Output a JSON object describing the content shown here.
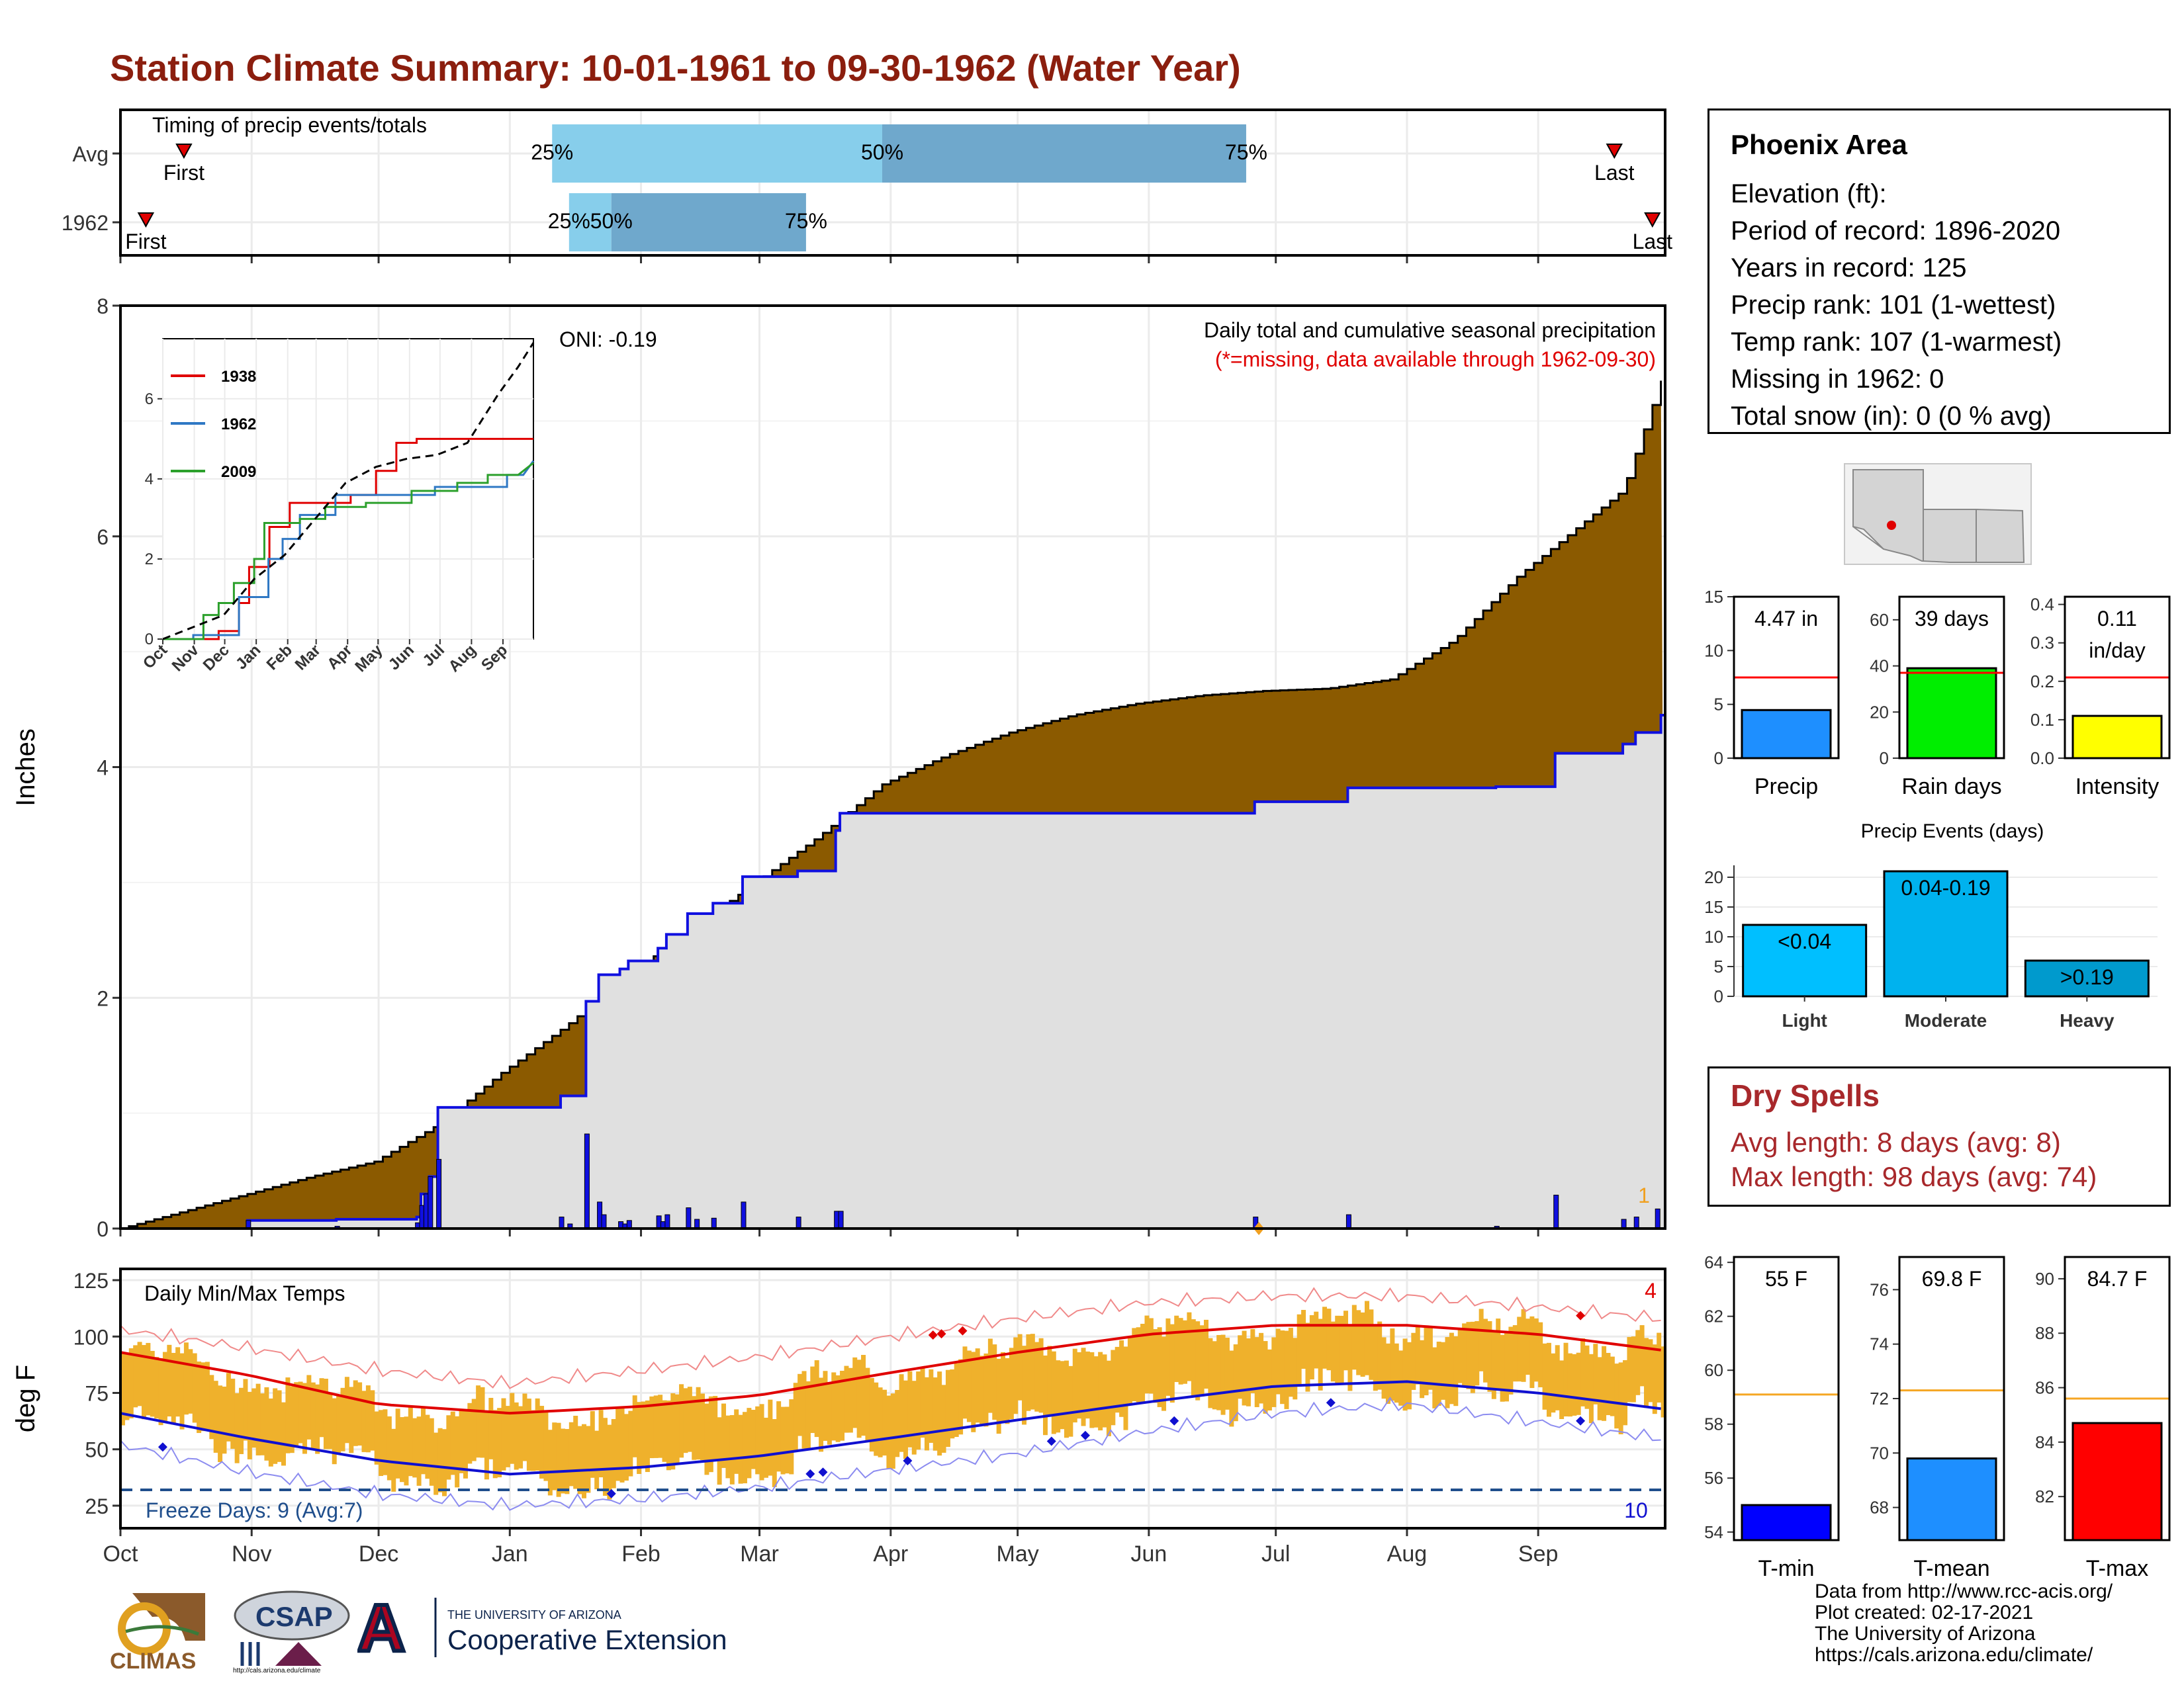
{
  "title": "Station Climate Summary: 10-01-1961 to 09-30-1962 (Water Year)",
  "timing": {
    "label": "Timing of precip events/totals",
    "rows": [
      {
        "name": "Avg",
        "first_day": 15,
        "q25": 102,
        "q50": 180,
        "q75": 266,
        "last_day": 353,
        "first_label": "First",
        "last_label": "Last",
        "q25_label": "25%",
        "q50_label": "50%",
        "q75_label": "75%"
      },
      {
        "name": "1962",
        "first_day": 6,
        "q25": 106,
        "q50": 116,
        "q75": 162,
        "last_day": 362,
        "first_label": "First",
        "last_label": "Last",
        "q25_label": "25%",
        "q50_label": "50%",
        "q75_label": "75%"
      }
    ],
    "colors": {
      "q1": "#87ceeb",
      "q2": "#6fa8cc"
    }
  },
  "precip": {
    "ylabel": "Inches",
    "ylim": [
      0,
      8
    ],
    "yticks": [
      0,
      2,
      4,
      6,
      8
    ],
    "note1": "Daily total and cumulative seasonal precipitation",
    "note2": "(*=missing, data available through 1962-09-30)",
    "oni": "ONI: -0.19",
    "corner_count": "1",
    "avg_cumulative": [
      [
        0,
        0
      ],
      [
        10,
        0.1
      ],
      [
        20,
        0.2
      ],
      [
        30,
        0.3
      ],
      [
        45,
        0.45
      ],
      [
        60,
        0.58
      ],
      [
        75,
        0.9
      ],
      [
        90,
        1.35
      ],
      [
        105,
        1.75
      ],
      [
        120,
        2.2
      ],
      [
        135,
        2.6
      ],
      [
        150,
        3.0
      ],
      [
        165,
        3.4
      ],
      [
        180,
        3.85
      ],
      [
        195,
        4.1
      ],
      [
        210,
        4.3
      ],
      [
        225,
        4.45
      ],
      [
        240,
        4.55
      ],
      [
        255,
        4.62
      ],
      [
        270,
        4.66
      ],
      [
        285,
        4.68
      ],
      [
        300,
        4.76
      ],
      [
        315,
        5.1
      ],
      [
        330,
        5.65
      ],
      [
        345,
        6.1
      ],
      [
        355,
        6.4
      ],
      [
        364,
        7.35
      ]
    ],
    "obs_cumulative": [
      [
        0,
        0
      ],
      [
        30,
        0
      ],
      [
        30,
        0.07
      ],
      [
        51,
        0.07
      ],
      [
        51,
        0.08
      ],
      [
        70,
        0.08
      ],
      [
        70,
        0.1
      ],
      [
        71,
        0.1
      ],
      [
        71,
        0.3
      ],
      [
        73,
        0.3
      ],
      [
        73,
        0.45
      ],
      [
        75,
        0.45
      ],
      [
        75,
        1.05
      ],
      [
        104,
        1.05
      ],
      [
        104,
        1.15
      ],
      [
        110,
        1.15
      ],
      [
        110,
        1.97
      ],
      [
        113,
        1.97
      ],
      [
        113,
        2.2
      ],
      [
        118,
        2.2
      ],
      [
        118,
        2.25
      ],
      [
        120,
        2.25
      ],
      [
        120,
        2.32
      ],
      [
        127,
        2.32
      ],
      [
        127,
        2.43
      ],
      [
        129,
        2.43
      ],
      [
        129,
        2.55
      ],
      [
        134,
        2.55
      ],
      [
        134,
        2.73
      ],
      [
        140,
        2.73
      ],
      [
        140,
        2.82
      ],
      [
        147,
        2.82
      ],
      [
        147,
        3.05
      ],
      [
        160,
        3.05
      ],
      [
        160,
        3.1
      ],
      [
        169,
        3.1
      ],
      [
        169,
        3.45
      ],
      [
        170,
        3.45
      ],
      [
        170,
        3.6
      ],
      [
        268,
        3.6
      ],
      [
        268,
        3.7
      ],
      [
        290,
        3.7
      ],
      [
        290,
        3.82
      ],
      [
        325,
        3.82
      ],
      [
        325,
        3.83
      ],
      [
        339,
        3.83
      ],
      [
        339,
        4.12
      ],
      [
        355,
        4.12
      ],
      [
        355,
        4.2
      ],
      [
        358,
        4.2
      ],
      [
        358,
        4.3
      ],
      [
        364,
        4.3
      ],
      [
        364,
        4.45
      ],
      [
        365,
        4.45
      ]
    ],
    "daily": [
      [
        30,
        0.07
      ],
      [
        51,
        0.02
      ],
      [
        70,
        0.05
      ],
      [
        71,
        0.2
      ],
      [
        72,
        0.3
      ],
      [
        73,
        0.45
      ],
      [
        75,
        0.6
      ],
      [
        104,
        0.1
      ],
      [
        106,
        0.04
      ],
      [
        110,
        0.82
      ],
      [
        113,
        0.23
      ],
      [
        114,
        0.12
      ],
      [
        118,
        0.06
      ],
      [
        119,
        0.04
      ],
      [
        120,
        0.07
      ],
      [
        127,
        0.11
      ],
      [
        128,
        0.06
      ],
      [
        129,
        0.12
      ],
      [
        134,
        0.18
      ],
      [
        136,
        0.08
      ],
      [
        140,
        0.09
      ],
      [
        147,
        0.23
      ],
      [
        160,
        0.1
      ],
      [
        169,
        0.15
      ],
      [
        170,
        0.15
      ],
      [
        268,
        0.1
      ],
      [
        290,
        0.12
      ],
      [
        325,
        0.02
      ],
      [
        339,
        0.29
      ],
      [
        355,
        0.08
      ],
      [
        358,
        0.1
      ],
      [
        363,
        0.17
      ]
    ],
    "missing_marker_day": 269,
    "colors": {
      "avg_fill": "#8b5a00",
      "obs_fill": "#e0e0e0",
      "obs_line": "#1010e0",
      "bars": "#1010e0"
    }
  },
  "inset": {
    "xlabels": [
      "Oct",
      "Nov",
      "Dec",
      "Jan",
      "Feb",
      "Mar",
      "Apr",
      "May",
      "Jun",
      "Jul",
      "Aug",
      "Sep"
    ],
    "yticks": [
      0,
      2,
      4,
      6
    ],
    "ylim": [
      0,
      7.5
    ],
    "series": [
      {
        "name": "1938",
        "color": "#e00000",
        "points": [
          [
            0,
            0
          ],
          [
            55,
            0
          ],
          [
            55,
            0.2
          ],
          [
            75,
            0.2
          ],
          [
            75,
            0.9
          ],
          [
            85,
            0.9
          ],
          [
            85,
            1.8
          ],
          [
            105,
            1.8
          ],
          [
            105,
            2.8
          ],
          [
            125,
            2.8
          ],
          [
            125,
            3.4
          ],
          [
            185,
            3.4
          ],
          [
            185,
            3.6
          ],
          [
            210,
            3.6
          ],
          [
            210,
            4.2
          ],
          [
            230,
            4.2
          ],
          [
            230,
            4.9
          ],
          [
            250,
            4.9
          ],
          [
            250,
            5.0
          ],
          [
            365,
            5.0
          ]
        ]
      },
      {
        "name": "1962",
        "color": "#2f78c4",
        "points": [
          [
            0,
            0
          ],
          [
            30,
            0
          ],
          [
            30,
            0.1
          ],
          [
            75,
            0.1
          ],
          [
            75,
            1.05
          ],
          [
            104,
            1.05
          ],
          [
            104,
            2.0
          ],
          [
            118,
            2.0
          ],
          [
            118,
            2.5
          ],
          [
            135,
            2.5
          ],
          [
            135,
            3.1
          ],
          [
            170,
            3.1
          ],
          [
            170,
            3.6
          ],
          [
            268,
            3.6
          ],
          [
            268,
            3.8
          ],
          [
            339,
            3.8
          ],
          [
            339,
            4.1
          ],
          [
            355,
            4.1
          ],
          [
            365,
            4.45
          ]
        ]
      },
      {
        "name": "2009",
        "color": "#2ca02c",
        "points": [
          [
            0,
            0
          ],
          [
            40,
            0
          ],
          [
            40,
            0.6
          ],
          [
            55,
            0.6
          ],
          [
            55,
            0.9
          ],
          [
            70,
            0.9
          ],
          [
            70,
            1.4
          ],
          [
            90,
            1.4
          ],
          [
            90,
            2.0
          ],
          [
            100,
            2.0
          ],
          [
            100,
            2.9
          ],
          [
            135,
            2.9
          ],
          [
            135,
            3.0
          ],
          [
            160,
            3.0
          ],
          [
            160,
            3.3
          ],
          [
            200,
            3.3
          ],
          [
            200,
            3.4
          ],
          [
            245,
            3.4
          ],
          [
            245,
            3.7
          ],
          [
            290,
            3.7
          ],
          [
            290,
            3.9
          ],
          [
            320,
            3.9
          ],
          [
            320,
            4.1
          ],
          [
            350,
            4.1
          ],
          [
            365,
            4.4
          ]
        ]
      }
    ],
    "avg": [
      [
        0,
        0
      ],
      [
        30,
        0.3
      ],
      [
        60,
        0.6
      ],
      [
        90,
        1.5
      ],
      [
        120,
        2.1
      ],
      [
        150,
        3.0
      ],
      [
        180,
        3.9
      ],
      [
        210,
        4.3
      ],
      [
        240,
        4.5
      ],
      [
        270,
        4.6
      ],
      [
        300,
        4.9
      ],
      [
        330,
        6.1
      ],
      [
        350,
        6.8
      ],
      [
        365,
        7.4
      ]
    ]
  },
  "temps": {
    "ylabel": "deg F",
    "title": "Daily Min/Max Temps",
    "ylim": [
      15,
      130
    ],
    "yticks": [
      25,
      50,
      75,
      100,
      125
    ],
    "freeze_label": "Freeze Days: 9 (Avg:7)",
    "freeze_line": 32,
    "count_top": "4",
    "count_bottom": "10",
    "normal_max": [
      [
        0,
        93
      ],
      [
        30,
        83
      ],
      [
        61,
        70
      ],
      [
        92,
        66
      ],
      [
        123,
        69
      ],
      [
        151,
        74
      ],
      [
        182,
        84
      ],
      [
        212,
        93
      ],
      [
        243,
        101
      ],
      [
        273,
        105
      ],
      [
        304,
        105
      ],
      [
        335,
        101
      ],
      [
        364,
        94
      ]
    ],
    "normal_min": [
      [
        0,
        66
      ],
      [
        30,
        55
      ],
      [
        61,
        45
      ],
      [
        92,
        39
      ],
      [
        123,
        42
      ],
      [
        151,
        47
      ],
      [
        182,
        55
      ],
      [
        212,
        63
      ],
      [
        243,
        71
      ],
      [
        273,
        78
      ],
      [
        304,
        80
      ],
      [
        335,
        75
      ],
      [
        364,
        68
      ]
    ],
    "record_max": [
      [
        0,
        103
      ],
      [
        30,
        95
      ],
      [
        61,
        85
      ],
      [
        92,
        79
      ],
      [
        123,
        85
      ],
      [
        151,
        91
      ],
      [
        182,
        100
      ],
      [
        212,
        108
      ],
      [
        243,
        115
      ],
      [
        273,
        118
      ],
      [
        304,
        118
      ],
      [
        335,
        113
      ],
      [
        364,
        108
      ]
    ],
    "record_min": [
      [
        0,
        52
      ],
      [
        30,
        40
      ],
      [
        61,
        30
      ],
      [
        92,
        25
      ],
      [
        123,
        28
      ],
      [
        151,
        33
      ],
      [
        182,
        41
      ],
      [
        212,
        48
      ],
      [
        243,
        58
      ],
      [
        273,
        66
      ],
      [
        304,
        70
      ],
      [
        335,
        62
      ],
      [
        364,
        55
      ]
    ],
    "record_hi_days": [
      192,
      194,
      199,
      345
    ],
    "record_lo_days": [
      10,
      116,
      166,
      163,
      186,
      220,
      228,
      249,
      286,
      345
    ],
    "colors": {
      "range": "#efb12c",
      "max": "#e00000",
      "min": "#1010d0",
      "record_max": "#f08a8a",
      "record_min": "#8c8cf0",
      "freeze": "#1f4e8c"
    }
  },
  "month_labels": [
    "Oct",
    "Nov",
    "Dec",
    "Jan",
    "Feb",
    "Mar",
    "Apr",
    "May",
    "Jun",
    "Jul",
    "Aug",
    "Sep"
  ],
  "month_starts": [
    0,
    31,
    61,
    92,
    123,
    151,
    182,
    212,
    243,
    273,
    304,
    335
  ],
  "station": {
    "name": "Phoenix Area",
    "lines": [
      "Elevation (ft):",
      "Period of record: 1896-2020",
      "Years in record: 125",
      "Precip rank: 101 (1-wettest)",
      "Temp rank: 107 (1-warmest)",
      "Missing in 1962: 0",
      "Total snow (in): 0 (0 % avg)"
    ]
  },
  "precip_bars": [
    {
      "label": "Precip",
      "value": 4.47,
      "avg": 7.5,
      "ymax": 15,
      "yticks": [
        0,
        5,
        10,
        15
      ],
      "text": "4.47 in",
      "color": "#1e8fff"
    },
    {
      "label": "Rain days",
      "value": 39,
      "avg": 37,
      "ymax": 70,
      "yticks": [
        0,
        20,
        40,
        60
      ],
      "text": "39 days",
      "color": "#00ee00"
    },
    {
      "label": "Intensity",
      "value": 0.11,
      "avg": 0.21,
      "ymax": 0.42,
      "yticks": [
        0.0,
        0.1,
        0.2,
        0.3,
        0.4
      ],
      "text": "0.11",
      "text2": "in/day",
      "color": "#ffff00"
    }
  ],
  "events": {
    "title": "Precip Events (days)",
    "categories": [
      "Light",
      "Moderate",
      "Heavy"
    ],
    "values": [
      12,
      21,
      6
    ],
    "labels": [
      "<0.04",
      "0.04-0.19",
      ">0.19"
    ],
    "yticks": [
      0,
      5,
      10,
      15,
      20
    ],
    "ymax": 22,
    "colors": [
      "#00bfff",
      "#00b2ee",
      "#009acd"
    ]
  },
  "dry": {
    "title": "Dry Spells",
    "line1": "Avg length: 8 days (avg: 8)",
    "line2": "Max length: 98 days (avg: 74)"
  },
  "temp_bars": [
    {
      "label": "T-min",
      "value": 55,
      "avg": 59.1,
      "ymin": 53.7,
      "ymax": 64.2,
      "yticks": [
        54,
        56,
        58,
        60,
        62,
        64
      ],
      "text": "55 F",
      "color": "#0000ff"
    },
    {
      "label": "T-mean",
      "value": 69.8,
      "avg": 72.3,
      "ymin": 66.8,
      "ymax": 77.2,
      "yticks": [
        68,
        70,
        72,
        74,
        76
      ],
      "text": "69.8 F",
      "color": "#1e8fff"
    },
    {
      "label": "T-max",
      "value": 84.7,
      "avg": 85.6,
      "ymin": 80.4,
      "ymax": 90.8,
      "yticks": [
        82,
        84,
        86,
        88,
        90
      ],
      "text": "84.7 F",
      "color": "#ff0000"
    }
  ],
  "credits": [
    "Data from http://www.rcc-acis.org/",
    "Plot created: 02-17-2021",
    "The University of Arizona",
    "https://cals.arizona.edu/climate/"
  ],
  "logos": {
    "climas": "CLIMAS",
    "csap": "CSAP",
    "csap_url": "http://cals.arizona.edu/climate",
    "ua_letter": "A",
    "ua_small": "THE UNIVERSITY OF ARIZONA",
    "ua_big": "Cooperative Extension"
  }
}
